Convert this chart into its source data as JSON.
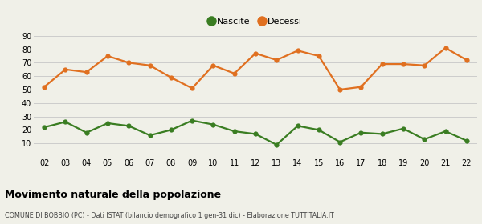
{
  "years": [
    "02",
    "03",
    "04",
    "05",
    "06",
    "07",
    "08",
    "09",
    "10",
    "11",
    "12",
    "13",
    "14",
    "15",
    "16",
    "17",
    "18",
    "19",
    "20",
    "21",
    "22"
  ],
  "nascite": [
    22,
    26,
    18,
    25,
    23,
    16,
    20,
    27,
    24,
    19,
    17,
    9,
    23,
    20,
    11,
    18,
    17,
    21,
    13,
    19,
    12
  ],
  "decessi": [
    52,
    65,
    63,
    75,
    70,
    68,
    59,
    51,
    68,
    62,
    77,
    72,
    79,
    75,
    50,
    52,
    69,
    69,
    68,
    81,
    72
  ],
  "nascite_color": "#3a7d22",
  "decessi_color": "#e07020",
  "background_color": "#f0f0e8",
  "grid_color": "#cccccc",
  "ylim": [
    0,
    90
  ],
  "yticks": [
    0,
    10,
    20,
    30,
    40,
    50,
    60,
    70,
    80,
    90
  ],
  "title": "Movimento naturale della popolazione",
  "subtitle": "COMUNE DI BOBBIO (PC) - Dati ISTAT (bilancio demografico 1 gen-31 dic) - Elaborazione TUTTITALIA.IT",
  "legend_nascite": "Nascite",
  "legend_decessi": "Decessi",
  "marker_size": 4.5,
  "line_width": 1.6
}
